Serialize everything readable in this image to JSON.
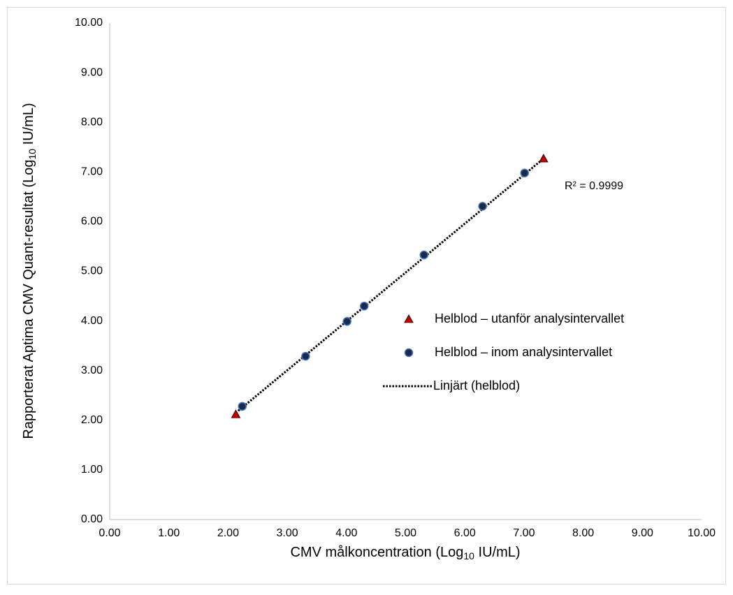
{
  "chart_data": {
    "type": "scatter",
    "xlabel": [
      "CMV målkoncentration (Log",
      "10",
      " IU/mL)"
    ],
    "ylabel": [
      "Rapporterat Aptima CMV Quant-resultat (Log",
      "10",
      " IU/mL)"
    ],
    "annotation": "R² = 0.9999",
    "xlim": [
      0,
      10
    ],
    "ylim": [
      0,
      10
    ],
    "xticks": [
      {
        "value": 0,
        "label": "0.00"
      },
      {
        "value": 1,
        "label": "1.00"
      },
      {
        "value": 2,
        "label": "2.00"
      },
      {
        "value": 3,
        "label": "3.00"
      },
      {
        "value": 4,
        "label": "4.00"
      },
      {
        "value": 5,
        "label": "5.00"
      },
      {
        "value": 6,
        "label": "6.00"
      },
      {
        "value": 7,
        "label": "7.00"
      },
      {
        "value": 8,
        "label": "8.00"
      },
      {
        "value": 9,
        "label": "9.00"
      },
      {
        "value": 10,
        "label": "10.00"
      }
    ],
    "yticks": [
      {
        "value": 0,
        "label": "0.00"
      },
      {
        "value": 1,
        "label": "1.00"
      },
      {
        "value": 2,
        "label": "2.00"
      },
      {
        "value": 3,
        "label": "3.00"
      },
      {
        "value": 4,
        "label": "4.00"
      },
      {
        "value": 5,
        "label": "5.00"
      },
      {
        "value": 6,
        "label": "6.00"
      },
      {
        "value": 7,
        "label": "7.00"
      },
      {
        "value": 8,
        "label": "8.00"
      },
      {
        "value": 9,
        "label": "9.00"
      },
      {
        "value": 10,
        "label": "10.00"
      }
    ],
    "grid": false,
    "series": [
      {
        "name": "Helblod – utanför analysintervallet",
        "marker": "triangle",
        "color": "#c00000",
        "x": [
          2.13,
          7.33
        ],
        "values": [
          2.12,
          7.27
        ]
      },
      {
        "name": "Helblod – inom analysintervallet",
        "marker": "circle",
        "color": "#1c2a4a",
        "x": [
          2.24,
          3.31,
          4.01,
          4.3,
          5.31,
          6.3,
          7.01
        ],
        "values": [
          2.28,
          3.29,
          3.99,
          4.3,
          5.33,
          6.31,
          6.98
        ]
      },
      {
        "name": "Linjärt (helblod)",
        "marker": "dotted-line",
        "color": "#000000",
        "x": [
          2.13,
          7.33
        ],
        "values": [
          2.15,
          7.27
        ]
      }
    ]
  }
}
